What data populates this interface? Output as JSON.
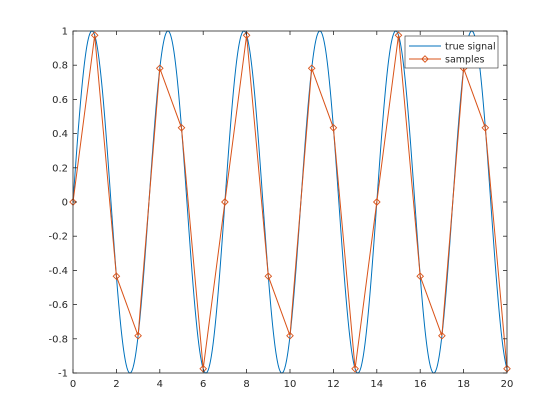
{
  "chart_data": {
    "type": "line",
    "title": "",
    "xlabel": "",
    "ylabel": "",
    "xlim": [
      0,
      20
    ],
    "ylim": [
      -1,
      1
    ],
    "xticks": [
      0,
      2,
      4,
      6,
      8,
      10,
      12,
      14,
      16,
      18,
      20
    ],
    "yticks": [
      -1,
      -0.8,
      -0.6,
      -0.4,
      -0.2,
      0,
      0.2,
      0.4,
      0.6,
      0.8,
      1
    ],
    "xtick_labels": [
      "0",
      "2",
      "4",
      "6",
      "8",
      "10",
      "12",
      "14",
      "16",
      "18",
      "20"
    ],
    "ytick_labels": [
      "-1",
      "-0.8",
      "-0.6",
      "-0.4",
      "-0.2",
      "0",
      "0.2",
      "0.4",
      "0.6",
      "0.8",
      "1"
    ],
    "grid": false,
    "legend_position": "top-right",
    "series": [
      {
        "name": "true signal",
        "color": "#0072bd",
        "marker": "none",
        "function": "sin(2*pi*f*t)",
        "frequency": 0.2857,
        "x_range": [
          0,
          20
        ]
      },
      {
        "name": "samples",
        "color": "#d95319",
        "marker": "diamond",
        "x": [
          0,
          1,
          2,
          3,
          4,
          5,
          6,
          7,
          8,
          9,
          10,
          11,
          12,
          13,
          14,
          15,
          16,
          17,
          18,
          19,
          20
        ],
        "y": [
          0,
          0.975,
          -0.434,
          -0.782,
          0.782,
          0.434,
          -0.975,
          0,
          0.975,
          -0.434,
          -0.782,
          0.782,
          0.434,
          -0.975,
          0,
          0.975,
          -0.434,
          -0.782,
          0.782,
          0.434,
          -0.975
        ]
      }
    ]
  }
}
